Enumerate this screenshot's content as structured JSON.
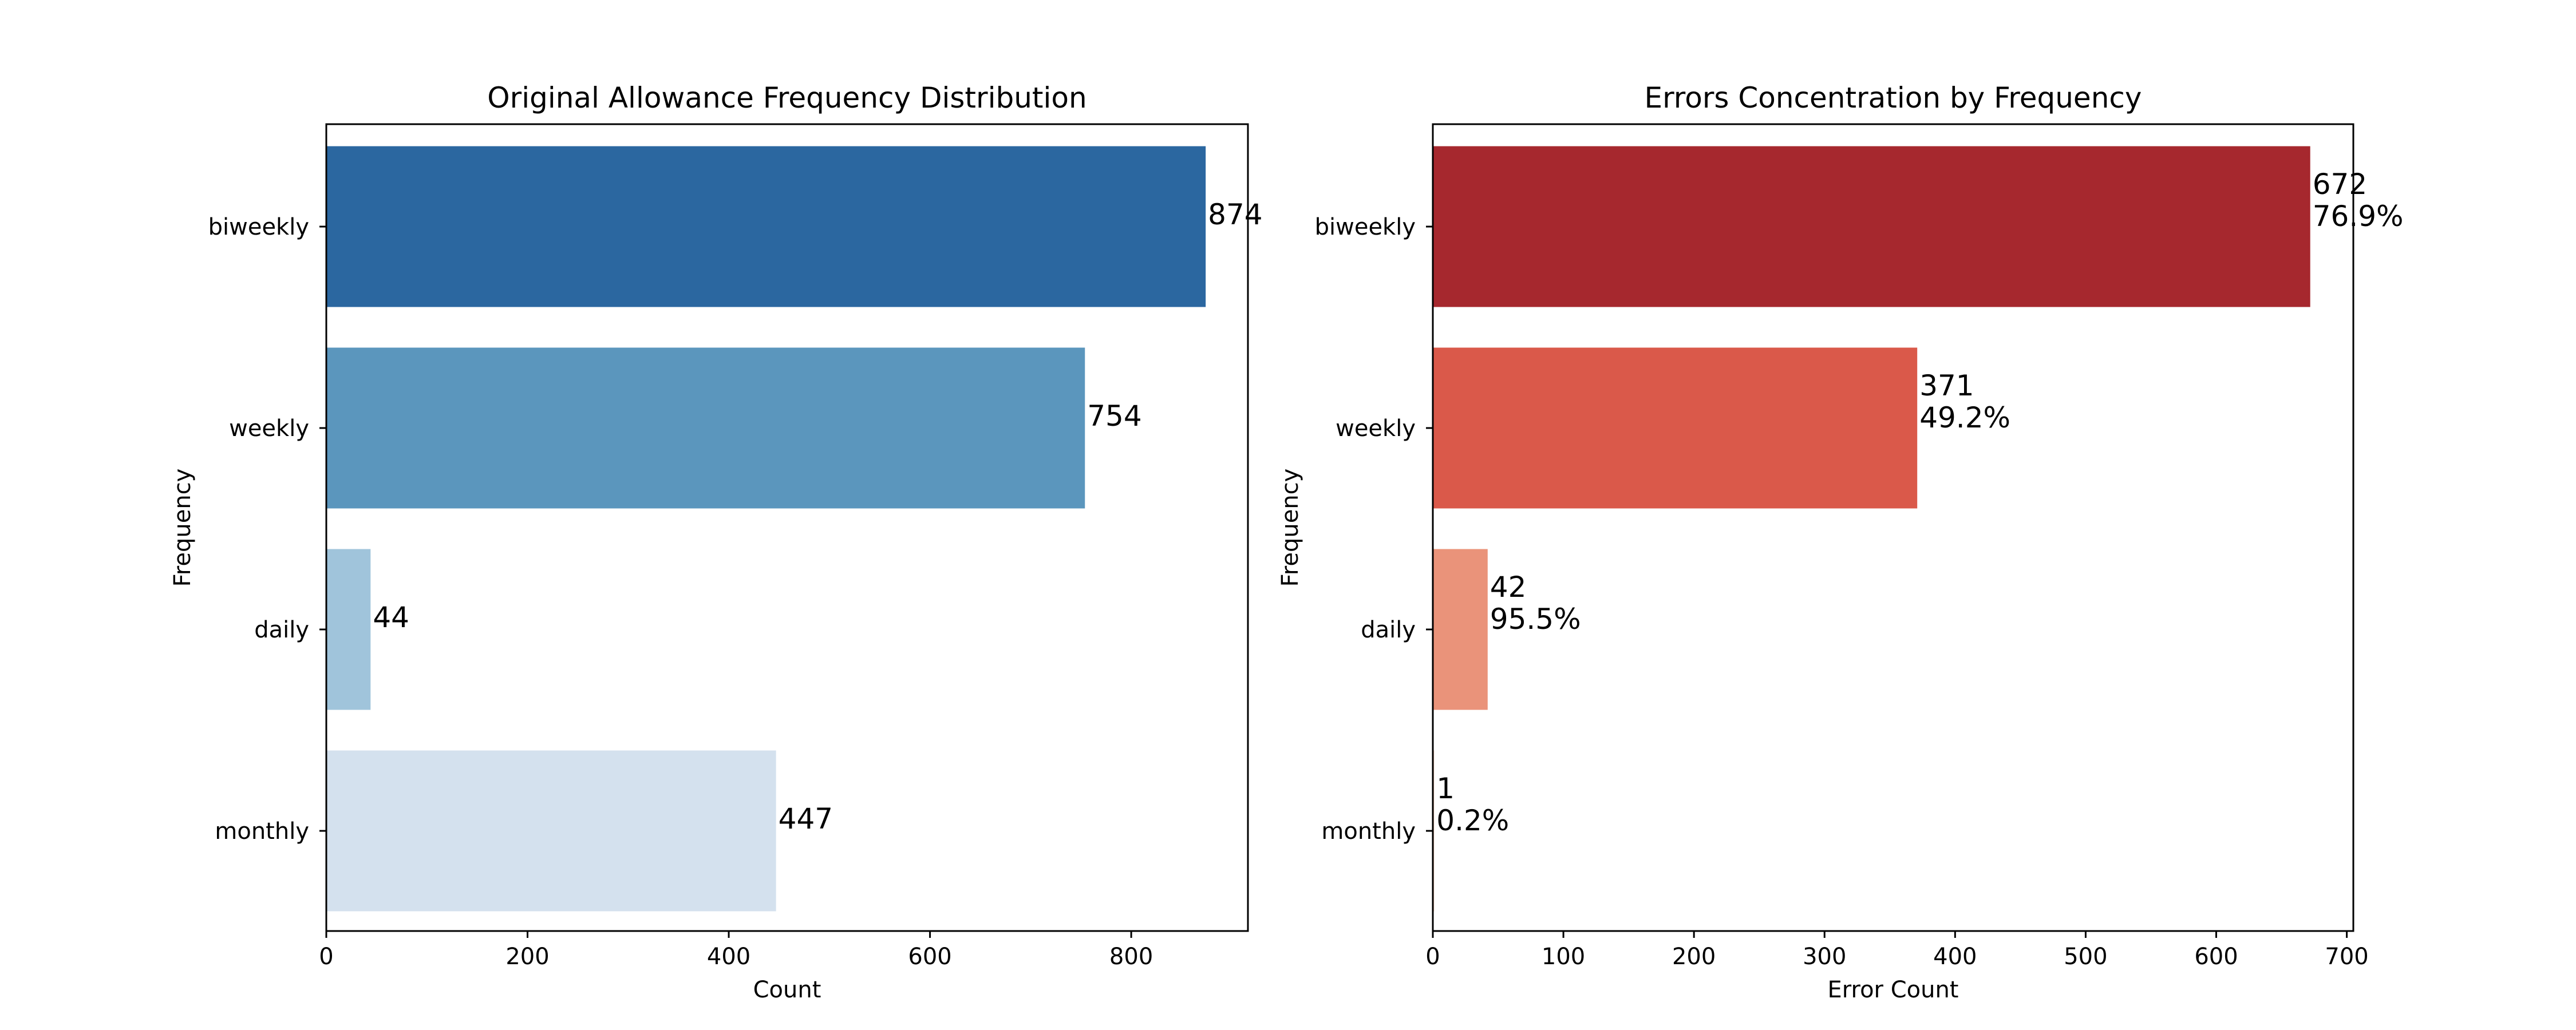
{
  "chart_data": [
    {
      "type": "bar",
      "orientation": "horizontal",
      "title": "Original Allowance Frequency Distribution",
      "xlabel": "Count",
      "ylabel": "Frequency",
      "categories": [
        "biweekly",
        "weekly",
        "daily",
        "monthly"
      ],
      "values": [
        874,
        754,
        44,
        447
      ],
      "data_labels": [
        "874",
        "754",
        "44",
        "447"
      ],
      "colors": [
        "#2b67a0",
        "#5b96bd",
        "#a0c4db",
        "#d4e1ee"
      ],
      "xlim": [
        0,
        916
      ],
      "xticks": [
        0,
        200,
        400,
        600,
        800
      ],
      "grid": false
    },
    {
      "type": "bar",
      "orientation": "horizontal",
      "title": "Errors Concentration by Frequency",
      "xlabel": "Error Count",
      "ylabel": "Frequency",
      "categories": [
        "biweekly",
        "weekly",
        "daily",
        "monthly"
      ],
      "values": [
        672,
        371,
        42,
        1
      ],
      "data_labels": [
        "672\n76.9%",
        "371\n49.2%",
        "42\n95.5%",
        "1\n0.2%"
      ],
      "percentages": [
        "76.9%",
        "49.2%",
        "95.5%",
        "0.2%"
      ],
      "colors": [
        "#a6282e",
        "#da594a",
        "#ea937a",
        "#fdd4c0"
      ],
      "xlim": [
        0,
        705
      ],
      "xticks": [
        0,
        100,
        200,
        300,
        400,
        500,
        600,
        700
      ],
      "grid": false
    }
  ]
}
